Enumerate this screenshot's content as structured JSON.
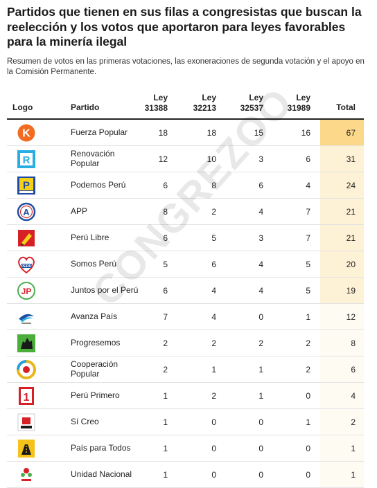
{
  "title": "Partidos que tienen en sus filas a congresistas que buscan la reelección y los votos que aportaron para leyes favorables para la minería ilegal",
  "subtitle": "Resumen de votos en las primeras votaciones, las exoneraciones de segunda votación y el apoyo en la Comisión Permanente.",
  "watermark": "CONGREZOO",
  "colors": {
    "total_top": "#fcd98a",
    "total_mid": "#fdf1d6",
    "total_low": "#fefbf3"
  },
  "headers": {
    "logo": "Logo",
    "party": "Partido",
    "laws": [
      {
        "line1": "Ley",
        "line2": "31388"
      },
      {
        "line1": "Ley",
        "line2": "32213"
      },
      {
        "line1": "Ley",
        "line2": "32537"
      },
      {
        "line1": "Ley",
        "line2": "31989"
      }
    ],
    "total": "Total"
  },
  "rows": [
    {
      "party": "Fuerza Popular",
      "logo_icon": "fuerza-popular-logo",
      "logo_text": "K",
      "v": [
        "18",
        "18",
        "15",
        "16"
      ],
      "total": "67"
    },
    {
      "party": "Renovación Popular",
      "logo_icon": "renovacion-popular-logo",
      "logo_text": "R",
      "v": [
        "12",
        "10",
        "3",
        "6"
      ],
      "total": "31"
    },
    {
      "party": "Podemos Perú",
      "logo_icon": "podemos-peru-logo",
      "logo_text": "P",
      "v": [
        "6",
        "8",
        "6",
        "4"
      ],
      "total": "24"
    },
    {
      "party": "APP",
      "logo_icon": "app-logo",
      "logo_text": "A",
      "v": [
        "8",
        "2",
        "4",
        "7"
      ],
      "total": "21"
    },
    {
      "party": "Perú Libre",
      "logo_icon": "peru-libre-logo",
      "logo_text": "",
      "v": [
        "6",
        "5",
        "3",
        "7"
      ],
      "total": "21"
    },
    {
      "party": "Somos Perú",
      "logo_icon": "somos-peru-logo",
      "logo_text": "",
      "v": [
        "5",
        "6",
        "4",
        "5"
      ],
      "total": "20"
    },
    {
      "party": "Juntos por el Perú",
      "logo_icon": "juntos-por-el-peru-logo",
      "logo_text": "JP",
      "v": [
        "6",
        "4",
        "4",
        "5"
      ],
      "total": "19"
    },
    {
      "party": "Avanza País",
      "logo_icon": "avanza-pais-logo",
      "logo_text": "",
      "v": [
        "7",
        "4",
        "0",
        "1"
      ],
      "total": "12"
    },
    {
      "party": "Progresemos",
      "logo_icon": "progresemos-logo",
      "logo_text": "",
      "v": [
        "2",
        "2",
        "2",
        "2"
      ],
      "total": "8"
    },
    {
      "party": "Cooperación Popular",
      "logo_icon": "cooperacion-popular-logo",
      "logo_text": "",
      "v": [
        "2",
        "1",
        "1",
        "2"
      ],
      "total": "6"
    },
    {
      "party": "Perú Primero",
      "logo_icon": "peru-primero-logo",
      "logo_text": "1",
      "v": [
        "1",
        "2",
        "1",
        "0"
      ],
      "total": "4"
    },
    {
      "party": "Sí Creo",
      "logo_icon": "si-creo-logo",
      "logo_text": "",
      "v": [
        "1",
        "0",
        "0",
        "1"
      ],
      "total": "2"
    },
    {
      "party": "País para Todos",
      "logo_icon": "pais-para-todos-logo",
      "logo_text": "",
      "v": [
        "1",
        "0",
        "0",
        "0"
      ],
      "total": "1"
    },
    {
      "party": "Unidad Nacional",
      "logo_icon": "unidad-nacional-logo",
      "logo_text": "",
      "v": [
        "1",
        "0",
        "0",
        "0"
      ],
      "total": "1"
    }
  ]
}
